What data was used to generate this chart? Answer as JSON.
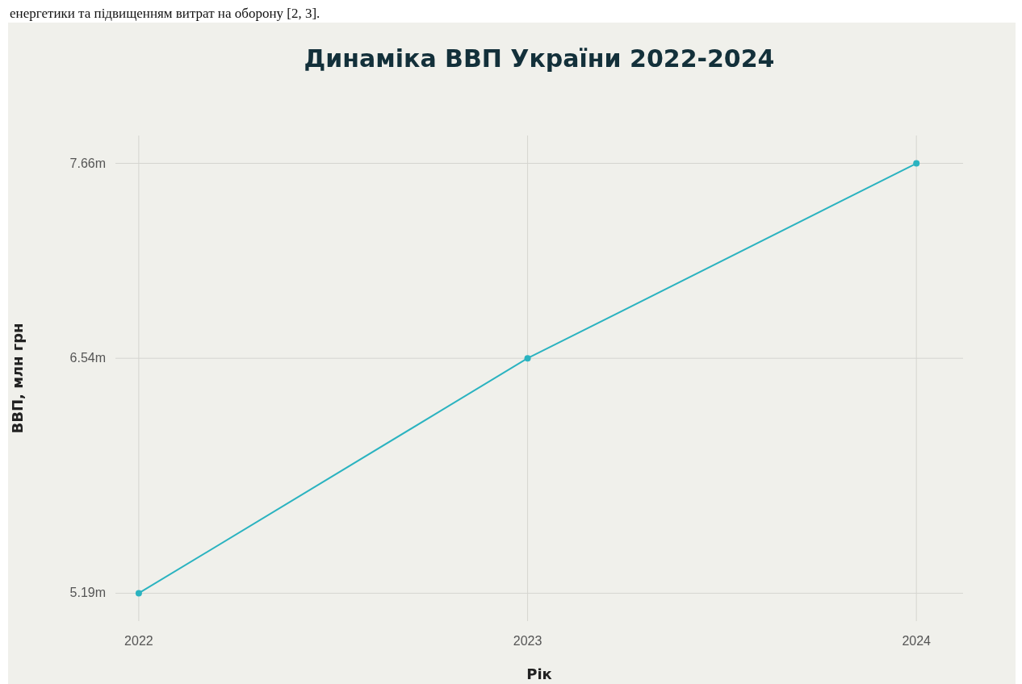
{
  "chart_data": {
    "type": "line",
    "title": "Динаміка ВВП України 2022-2024",
    "xlabel": "Рік",
    "ylabel": "ВВП, млн грн",
    "annotations": [
      "енергетики та підвищенням витрат на оборону [2, 3]."
    ],
    "x": [
      2022,
      2023,
      2024
    ],
    "series": [
      {
        "color": "#2bb3c0",
        "values": [
          5.19,
          6.54,
          7.66
        ]
      }
    ],
    "xlim": [
      2021.94,
      2024.12
    ],
    "xticks": [
      2022,
      2023,
      2024
    ],
    "ylim": [
      5.03,
      7.82
    ],
    "yticks": [
      {
        "value": 5.19,
        "label": "5.19m"
      },
      {
        "value": 6.54,
        "label": "6.54m"
      },
      {
        "value": 7.66,
        "label": "7.66m"
      }
    ],
    "grid": true,
    "marker": "circle",
    "line_style": "solid"
  }
}
